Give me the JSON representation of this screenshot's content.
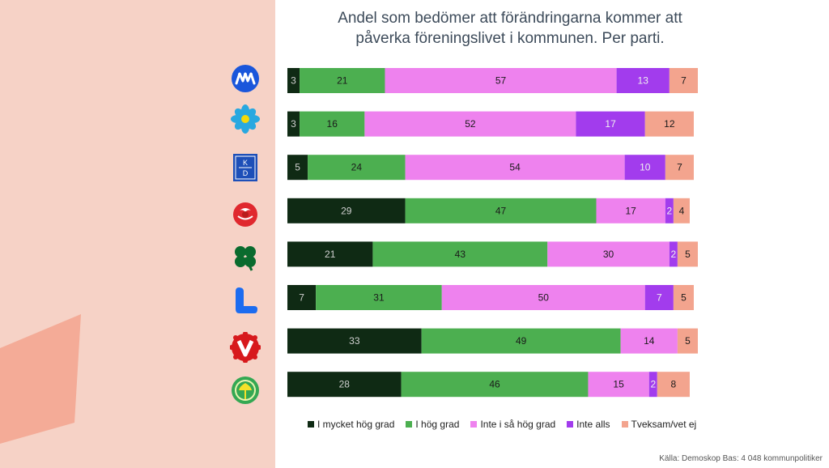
{
  "chart_data": {
    "type": "bar",
    "orientation": "horizontal",
    "stacked": true,
    "title_lines": [
      "Andel som bedömer att förändringarna kommer att",
      "påverka föreningslivet i kommunen. Per parti."
    ],
    "categories": [
      "M",
      "C",
      "KD",
      "S",
      "C-clover",
      "L",
      "V",
      "MP"
    ],
    "category_logos": [
      "moderaterna-logo",
      "centerpartiet-flower-logo",
      "kristdemokraterna-logo",
      "socialdemokraterna-rose-logo",
      "centerpartiet-clover-logo",
      "liberalerna-logo",
      "vansterpartiet-logo",
      "miljopartiet-logo"
    ],
    "series": [
      {
        "name": "I mycket hög grad",
        "color": "#0f2a14",
        "label_color": "#cfcfcf",
        "values": [
          3,
          3,
          5,
          29,
          21,
          7,
          33,
          28
        ]
      },
      {
        "name": "I hög grad",
        "color": "#4caf50",
        "label_color": "#1a1a1a",
        "values": [
          21,
          16,
          24,
          47,
          43,
          31,
          49,
          46
        ]
      },
      {
        "name": "Inte i så hög grad",
        "color": "#ee82ee",
        "label_color": "#1a1a1a",
        "values": [
          57,
          52,
          54,
          17,
          30,
          50,
          14,
          15
        ]
      },
      {
        "name": "Inte alls",
        "color": "#a23ced",
        "label_color": "#f0f0f0",
        "values": [
          13,
          17,
          10,
          2,
          2,
          7,
          0,
          2
        ]
      },
      {
        "name": "Tveksam/vet ej",
        "color": "#f3a48e",
        "label_color": "#1a1a1a",
        "values": [
          7,
          12,
          7,
          4,
          5,
          5,
          5,
          8
        ]
      }
    ],
    "xlim": [
      0,
      101
    ]
  },
  "source": "Källa: Demoskop Bas: 4 048 kommunpolitiker",
  "logos": {
    "kd_text_top": "K",
    "kd_text_bottom": "D"
  }
}
